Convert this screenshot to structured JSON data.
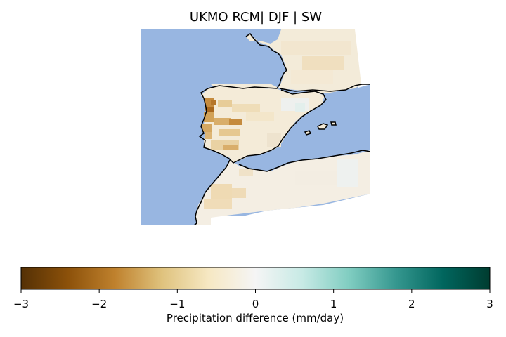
{
  "figure": {
    "title": "UKMO RCM| DJF | SW"
  },
  "map": {
    "ocean_color": "#98B6E1",
    "coastline_color": "#000000",
    "land_regions": [
      "Iberian Peninsula",
      "Southern France",
      "North Africa",
      "Balearic Islands"
    ]
  },
  "colorbar": {
    "label": "Precipitation difference (mm/day)",
    "vmin": -3,
    "vmax": 3,
    "ticks": [
      "−3",
      "−2",
      "−1",
      "0",
      "1",
      "2",
      "3"
    ],
    "colormap": "BrBG",
    "stops": [
      "#543005",
      "#8C510A",
      "#BF812D",
      "#DFC27D",
      "#F6E8C3",
      "#F5F5F5",
      "#C7EAE5",
      "#80CDC1",
      "#35978F",
      "#01665E",
      "#003C30"
    ]
  }
}
